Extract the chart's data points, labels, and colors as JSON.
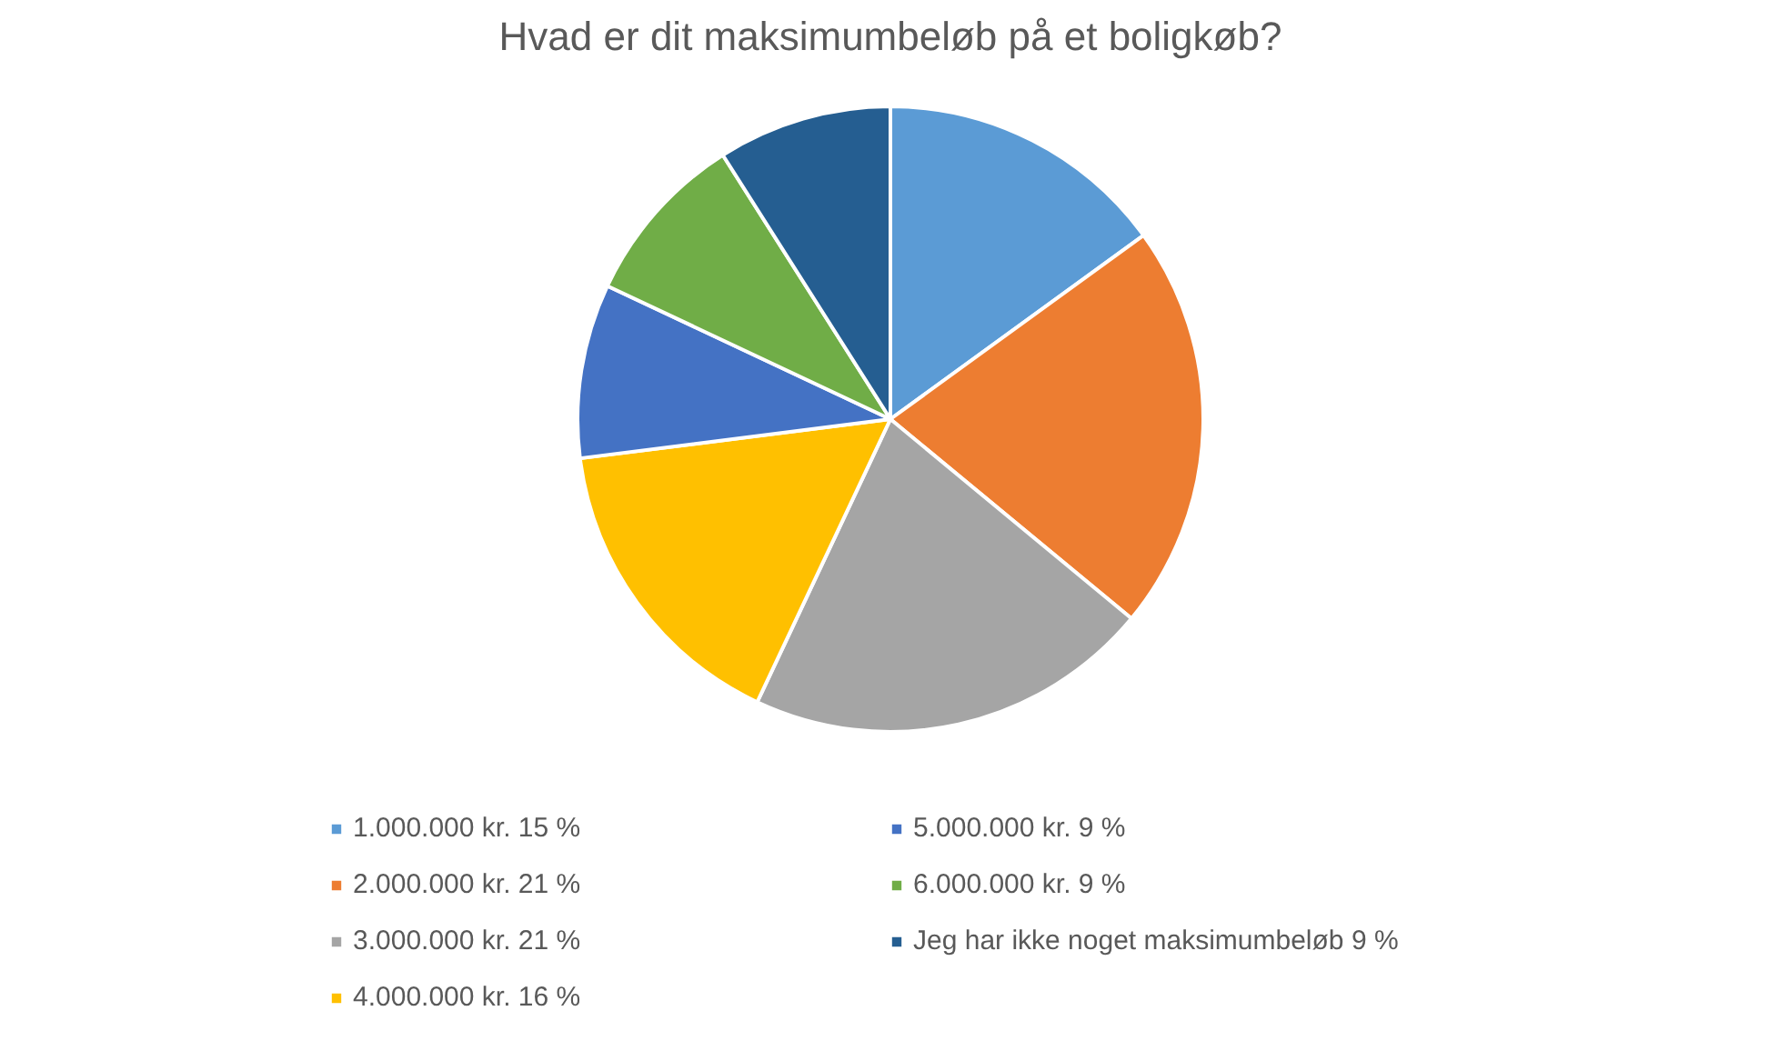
{
  "chart_data": {
    "type": "pie",
    "title": "Hvad er dit maksimumbeløb på et boligkøb?",
    "categories": [
      "1.000.000 kr. 15 %",
      "2.000.000 kr. 21 %",
      "3.000.000 kr. 21 %",
      "4.000.000 kr. 16 %",
      "5.000.000 kr. 9 %",
      "6.000.000 kr. 9 %",
      "Jeg har ikke noget maksimumbeløb 9 %"
    ],
    "values": [
      15,
      21,
      21,
      16,
      9,
      9,
      9
    ],
    "colors": [
      "#5b9bd5",
      "#ed7d31",
      "#a5a5a5",
      "#ffc000",
      "#4472c4",
      "#70ad47",
      "#255e91"
    ],
    "legend": "bottom"
  }
}
